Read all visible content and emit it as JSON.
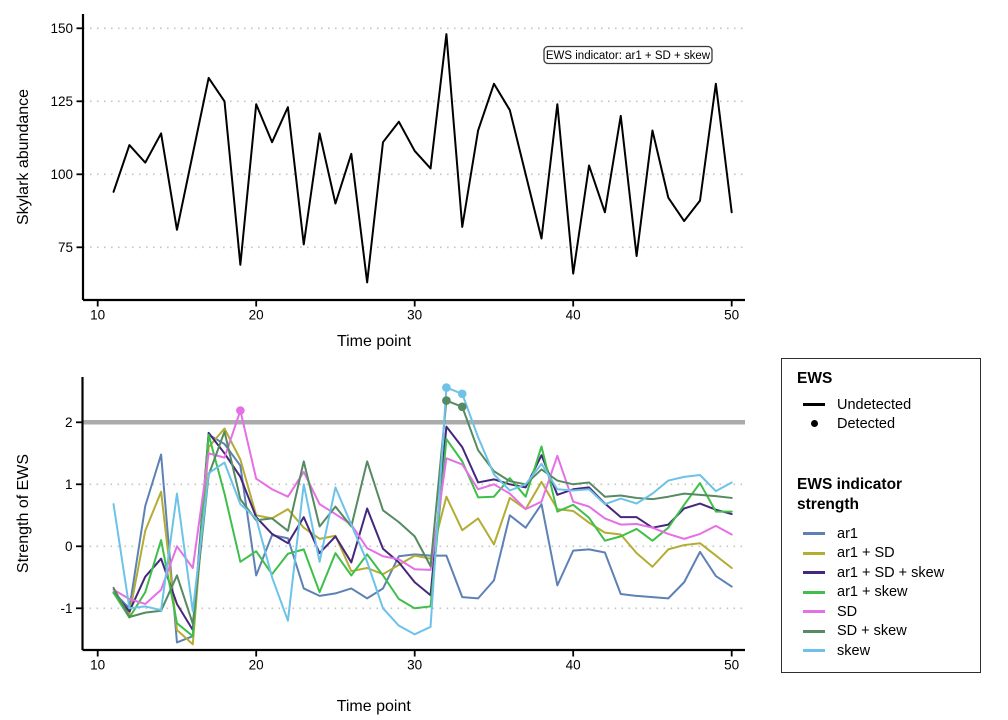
{
  "background": "#ffffff",
  "chart_data": [
    {
      "id": "skylark-abundance",
      "type": "line",
      "xlabel": "Time point",
      "ylabel": "Skylark abundance",
      "annotation": "EWS indicator: ar1 + SD + skew",
      "line_color": "#000000",
      "grid": "horizontal-dotted",
      "xticks": [
        10,
        20,
        30,
        40,
        50
      ],
      "yticks": [
        75,
        100,
        125,
        150
      ],
      "xlim": [
        9.1,
        51
      ],
      "ylim": [
        57,
        155
      ],
      "x": [
        11,
        12,
        13,
        14,
        15,
        16,
        17,
        18,
        19,
        20,
        21,
        22,
        23,
        24,
        25,
        26,
        27,
        28,
        29,
        30,
        31,
        32,
        33,
        34,
        35,
        36,
        37,
        38,
        39,
        40,
        41,
        42,
        43,
        44,
        45,
        46,
        47,
        48,
        49,
        50
      ],
      "values": [
        94,
        110,
        104,
        114,
        81,
        107,
        133,
        125,
        69,
        124,
        111,
        123,
        76,
        114,
        90,
        107,
        63,
        111,
        118,
        108,
        102,
        148,
        82,
        115,
        131,
        122,
        100,
        78,
        124,
        66,
        103,
        87,
        120,
        72,
        115,
        92,
        84,
        91,
        131,
        87
      ]
    },
    {
      "id": "ews-strength",
      "type": "line",
      "xlabel": "Time point",
      "ylabel": "Strength of EWS",
      "grid": "horizontal-dotted",
      "threshold": {
        "value": 2,
        "color": "#ababab"
      },
      "xticks": [
        10,
        20,
        30,
        40,
        50
      ],
      "yticks": [
        -1,
        0,
        1,
        2
      ],
      "xlim": [
        9.1,
        51
      ],
      "ylim": [
        -1.67,
        2.73
      ],
      "legend_position": "right",
      "x": [
        11,
        12,
        13,
        14,
        15,
        16,
        17,
        18,
        19,
        20,
        21,
        22,
        23,
        24,
        25,
        26,
        27,
        28,
        29,
        30,
        31,
        32,
        33,
        34,
        35,
        36,
        37,
        38,
        39,
        40,
        41,
        42,
        43,
        44,
        45,
        46,
        47,
        48,
        49,
        50
      ],
      "series": [
        {
          "name": "ar1",
          "color": "#5e81b5",
          "values": [
            -0.74,
            -1.0,
            0.65,
            1.48,
            -1.55,
            -1.45,
            1.8,
            1.65,
            1.3,
            -0.47,
            0.18,
            0.13,
            -0.68,
            -0.8,
            -0.76,
            -0.68,
            -0.84,
            -0.68,
            -0.16,
            -0.13,
            -0.15,
            -0.15,
            -0.82,
            -0.84,
            -0.55,
            0.5,
            0.3,
            0.68,
            -0.63,
            -0.07,
            -0.05,
            -0.1,
            -0.77,
            -0.8,
            -0.82,
            -0.84,
            -0.58,
            -0.09,
            -0.48,
            -0.65
          ]
        },
        {
          "name": "ar1 + SD",
          "color": "#b3ad33",
          "values": [
            -0.75,
            -1.1,
            0.25,
            0.88,
            -1.35,
            -1.58,
            1.6,
            1.9,
            1.4,
            0.5,
            0.45,
            0.6,
            0.3,
            0.12,
            0.17,
            -0.4,
            -0.35,
            -0.45,
            -0.3,
            -0.15,
            -0.2,
            0.8,
            0.26,
            0.45,
            0.03,
            0.78,
            0.6,
            1.04,
            0.6,
            0.57,
            0.38,
            0.22,
            0.19,
            -0.11,
            -0.33,
            -0.05,
            0.02,
            0.05,
            -0.15,
            -0.35
          ]
        },
        {
          "name": "ar1 + SD + skew",
          "color": "#45287d",
          "values": [
            -0.75,
            -1.05,
            -0.49,
            -0.2,
            -0.93,
            -1.35,
            1.83,
            1.5,
            1.12,
            0.47,
            0.2,
            0.05,
            0.47,
            -0.11,
            0.16,
            -0.26,
            0.61,
            -0.04,
            -0.26,
            -0.58,
            -0.79,
            1.93,
            1.6,
            1.03,
            1.08,
            1.0,
            0.95,
            1.47,
            0.83,
            0.92,
            0.95,
            0.69,
            0.47,
            0.47,
            0.3,
            0.35,
            0.61,
            0.69,
            0.59,
            0.52
          ]
        },
        {
          "name": "ar1 + skew",
          "color": "#3ebf49",
          "values": [
            -0.75,
            -1.15,
            -0.74,
            0.1,
            -1.24,
            -1.45,
            1.8,
            0.85,
            -0.25,
            -0.08,
            -0.45,
            -0.12,
            -0.05,
            -0.74,
            -0.11,
            -0.47,
            -0.13,
            -0.47,
            -0.85,
            -1.0,
            -0.97,
            1.73,
            1.37,
            0.79,
            0.8,
            1.1,
            0.8,
            1.61,
            0.56,
            0.67,
            0.46,
            0.09,
            0.16,
            0.28,
            0.09,
            0.3,
            0.67,
            1.02,
            0.56,
            0.56
          ]
        },
        {
          "name": "SD",
          "color": "#e570e5",
          "values": [
            -0.7,
            -0.85,
            -0.93,
            -0.7,
            0.0,
            -0.35,
            1.5,
            1.43,
            2.19,
            1.09,
            0.92,
            0.8,
            1.2,
            0.68,
            0.52,
            0.35,
            -0.03,
            -0.16,
            -0.21,
            -0.37,
            -0.38,
            1.42,
            1.32,
            0.92,
            1.0,
            0.85,
            0.6,
            0.72,
            1.46,
            0.72,
            0.64,
            0.45,
            0.35,
            0.36,
            0.3,
            0.2,
            0.12,
            0.2,
            0.33,
            0.19
          ]
        },
        {
          "name": "SD + skew",
          "color": "#568a61",
          "values": [
            -0.67,
            -1.14,
            -1.07,
            -1.04,
            -0.47,
            -1.25,
            1.15,
            1.85,
            0.76,
            0.42,
            0.45,
            0.25,
            1.37,
            0.32,
            0.64,
            0.32,
            1.37,
            0.58,
            0.39,
            0.16,
            -0.32,
            2.35,
            2.25,
            1.55,
            1.21,
            1.05,
            1.0,
            1.24,
            1.06,
            1.0,
            1.03,
            0.8,
            0.82,
            0.78,
            0.76,
            0.8,
            0.85,
            0.83,
            0.81,
            0.78
          ]
        },
        {
          "name": "skew",
          "color": "#6dc2e8",
          "values": [
            0.68,
            -1.0,
            -0.97,
            -1.03,
            0.85,
            -1.05,
            1.18,
            1.35,
            0.68,
            0.45,
            -0.5,
            -1.2,
            1.0,
            -0.25,
            0.95,
            0.35,
            -0.25,
            -1.0,
            -1.28,
            -1.42,
            -1.3,
            2.56,
            2.46,
            1.76,
            1.16,
            0.9,
            1.0,
            1.33,
            0.92,
            0.9,
            0.92,
            0.68,
            0.77,
            0.69,
            0.85,
            1.06,
            1.12,
            1.15,
            0.89,
            1.03
          ]
        }
      ],
      "detected_points": [
        {
          "series": "SD",
          "x": 19,
          "y": 2.19
        },
        {
          "series": "SD + skew",
          "x": 32,
          "y": 2.35
        },
        {
          "series": "SD + skew",
          "x": 33,
          "y": 2.25
        },
        {
          "series": "skew",
          "x": 32,
          "y": 2.56
        },
        {
          "series": "skew",
          "x": 33,
          "y": 2.46
        }
      ]
    }
  ],
  "legend": {
    "title_ews": "EWS",
    "ews_items": [
      {
        "glyph": "line-icon",
        "label": "Undetected"
      },
      {
        "glyph": "point-icon",
        "label": "Detected"
      }
    ],
    "title_indicator": "EWS indicator strength",
    "indicator_items": [
      {
        "label": "ar1",
        "color": "#5e81b5"
      },
      {
        "label": "ar1 + SD",
        "color": "#b3ad33"
      },
      {
        "label": "ar1 + SD + skew",
        "color": "#45287d"
      },
      {
        "label": "ar1 + skew",
        "color": "#3ebf49"
      },
      {
        "label": "SD",
        "color": "#e570e5"
      },
      {
        "label": "SD + skew",
        "color": "#568a61"
      },
      {
        "label": "skew",
        "color": "#6dc2e8"
      }
    ]
  },
  "style_colors": {
    "grid": "#c6c6c6",
    "axis": "#000000",
    "threshold": "#ababab",
    "annotation_border": "#3a3a3a"
  }
}
